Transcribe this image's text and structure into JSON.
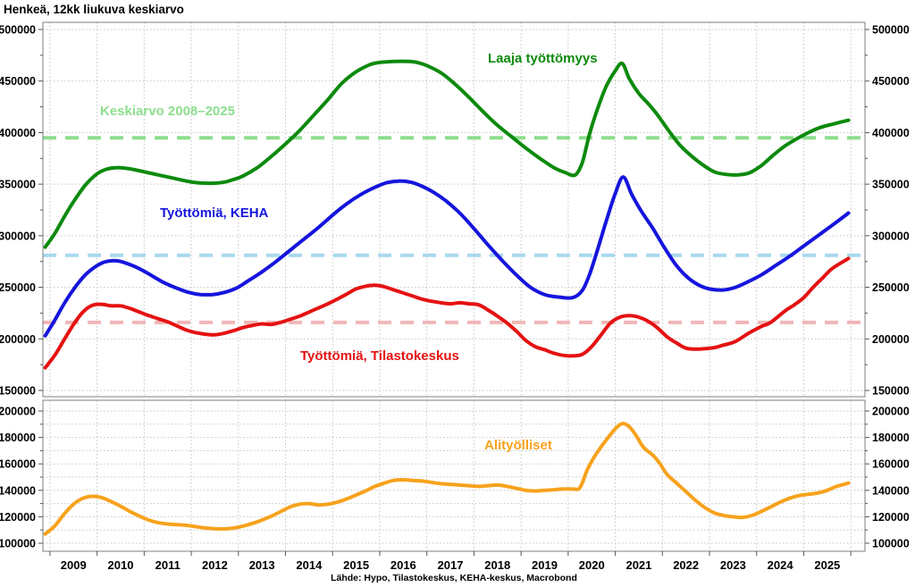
{
  "title": "Henkeä, 12kk liukuva keskiarvo",
  "source": "Lähde: Hypo, Tilastokeskus, KEHA-keskus, Macrobond",
  "colors": {
    "laaja": "#0d8a0d",
    "keha": "#1515dd",
    "tilastokeskus": "#e51212",
    "alityolliset": "#f7a21c",
    "avg_laaja": "#8dde8d",
    "avg_keha": "#a8d8ef",
    "avg_tilastokeskus": "#f0b6b6",
    "grid": "#c4c4c4",
    "border": "#7f7f7f",
    "text": "#000000"
  },
  "x_axis": {
    "domain": [
      2008.85,
      2026.3
    ],
    "year_labels": [
      "2009",
      "2010",
      "2011",
      "2012",
      "2013",
      "2014",
      "2015",
      "2016",
      "2017",
      "2018",
      "2019",
      "2020",
      "2021",
      "2022",
      "2023",
      "2024",
      "2025"
    ]
  },
  "chart_data": [
    {
      "type": "line",
      "panel": "main",
      "ylim": [
        150000,
        500000
      ],
      "ytick_step": 50000,
      "minor_tick_step": 25000,
      "grid_step": 50000,
      "legend_position": "inline-annotations",
      "series": [
        {
          "name": "Laaja työttömyys",
          "color": "#0d8a0d",
          "x": [
            2008.9,
            2009.1,
            2009.3,
            2009.5,
            2009.75,
            2010.0,
            2010.2,
            2010.4,
            2010.6,
            2010.8,
            2011.0,
            2011.3,
            2011.6,
            2011.9,
            2012.1,
            2012.3,
            2012.5,
            2012.7,
            2012.9,
            2013.1,
            2013.4,
            2013.7,
            2014.0,
            2014.3,
            2014.6,
            2014.9,
            2015.2,
            2015.5,
            2015.8,
            2016.0,
            2016.3,
            2016.6,
            2016.8,
            2017.0,
            2017.3,
            2017.6,
            2017.9,
            2018.2,
            2018.5,
            2018.8,
            2019.1,
            2019.4,
            2019.7,
            2019.95,
            2020.15,
            2020.3,
            2020.45,
            2020.6,
            2020.8,
            2021.0,
            2021.15,
            2021.3,
            2021.5,
            2021.7,
            2021.9,
            2022.1,
            2022.35,
            2022.6,
            2022.85,
            2023.1,
            2023.35,
            2023.6,
            2023.85,
            2024.1,
            2024.35,
            2024.6,
            2024.85,
            2025.1,
            2025.35,
            2025.6,
            2025.95
          ],
          "values": [
            289000,
            302000,
            318000,
            333000,
            349000,
            360000,
            364500,
            366000,
            365500,
            364000,
            362000,
            359000,
            356000,
            353000,
            351500,
            351000,
            351000,
            352000,
            354500,
            358000,
            366000,
            377000,
            389000,
            402000,
            417000,
            432000,
            448000,
            459000,
            466000,
            468000,
            469000,
            469000,
            468000,
            465000,
            458000,
            447000,
            434000,
            420000,
            407000,
            396000,
            385000,
            375000,
            366000,
            361000,
            359000,
            371000,
            398000,
            420000,
            444000,
            460000,
            467000,
            452000,
            438000,
            428000,
            417000,
            404000,
            389000,
            378000,
            369000,
            362000,
            359500,
            359000,
            361000,
            368000,
            378000,
            387000,
            394000,
            400000,
            405000,
            408000,
            412000
          ]
        },
        {
          "name": "Työttömiä, KEHA",
          "color": "#1515dd",
          "x": [
            2008.9,
            2009.1,
            2009.3,
            2009.5,
            2009.75,
            2010.0,
            2010.2,
            2010.45,
            2010.7,
            2010.9,
            2011.1,
            2011.4,
            2011.7,
            2011.95,
            2012.2,
            2012.45,
            2012.7,
            2012.95,
            2013.2,
            2013.5,
            2013.8,
            2014.1,
            2014.4,
            2014.7,
            2015.0,
            2015.3,
            2015.6,
            2015.9,
            2016.15,
            2016.4,
            2016.65,
            2016.9,
            2017.15,
            2017.4,
            2017.7,
            2018.0,
            2018.3,
            2018.6,
            2018.9,
            2019.2,
            2019.5,
            2019.8,
            2020.1,
            2020.3,
            2020.45,
            2020.6,
            2020.8,
            2021.0,
            2021.17,
            2021.35,
            2021.55,
            2021.8,
            2022.05,
            2022.3,
            2022.55,
            2022.8,
            2023.05,
            2023.3,
            2023.55,
            2023.8,
            2024.1,
            2024.4,
            2024.7,
            2025.0,
            2025.3,
            2025.6,
            2025.95
          ],
          "values": [
            203000,
            218000,
            234000,
            248000,
            262000,
            271000,
            275000,
            275500,
            272000,
            268000,
            263000,
            255000,
            249000,
            245000,
            243000,
            243000,
            245000,
            249000,
            256000,
            265000,
            275000,
            286000,
            297000,
            308000,
            320000,
            331000,
            340000,
            347000,
            351500,
            353000,
            352000,
            348000,
            342000,
            334000,
            322000,
            307000,
            291000,
            276000,
            262000,
            250000,
            243000,
            240500,
            240000,
            247000,
            262000,
            283000,
            313000,
            341000,
            357000,
            340000,
            324000,
            307000,
            288000,
            271000,
            259000,
            251500,
            248000,
            247500,
            250000,
            255000,
            262000,
            271000,
            280000,
            290000,
            300000,
            310000,
            322000
          ]
        },
        {
          "name": "Työttömiä, Tilastokeskus",
          "color": "#e51212",
          "x": [
            2008.9,
            2009.1,
            2009.3,
            2009.5,
            2009.7,
            2009.9,
            2010.1,
            2010.3,
            2010.5,
            2010.7,
            2010.9,
            2011.1,
            2011.3,
            2011.5,
            2011.7,
            2011.9,
            2012.1,
            2012.3,
            2012.5,
            2012.7,
            2012.9,
            2013.1,
            2013.3,
            2013.5,
            2013.7,
            2013.9,
            2014.1,
            2014.3,
            2014.5,
            2014.7,
            2014.9,
            2015.1,
            2015.3,
            2015.5,
            2015.7,
            2015.9,
            2016.1,
            2016.3,
            2016.5,
            2016.7,
            2016.9,
            2017.1,
            2017.3,
            2017.5,
            2017.7,
            2017.9,
            2018.1,
            2018.3,
            2018.5,
            2018.7,
            2018.9,
            2019.1,
            2019.3,
            2019.5,
            2019.7,
            2019.9,
            2020.1,
            2020.3,
            2020.5,
            2020.7,
            2020.9,
            2021.1,
            2021.3,
            2021.5,
            2021.7,
            2021.9,
            2022.1,
            2022.3,
            2022.5,
            2022.7,
            2022.9,
            2023.1,
            2023.3,
            2023.55,
            2023.85,
            2024.1,
            2024.3,
            2024.6,
            2024.8,
            2025.0,
            2025.2,
            2025.4,
            2025.6,
            2025.95
          ],
          "values": [
            172000,
            184000,
            199000,
            214000,
            226000,
            232500,
            233500,
            232000,
            232000,
            229500,
            226000,
            222500,
            219500,
            216500,
            212500,
            208500,
            206000,
            204500,
            204000,
            205500,
            208000,
            211000,
            213000,
            214500,
            214000,
            216000,
            219000,
            222000,
            226000,
            230000,
            234000,
            238500,
            243500,
            248500,
            251000,
            252000,
            250500,
            247500,
            244500,
            241500,
            238500,
            236500,
            235000,
            234000,
            235000,
            234000,
            233000,
            228000,
            222000,
            215500,
            207500,
            198500,
            192500,
            189500,
            186000,
            184000,
            183500,
            185000,
            192500,
            204000,
            215500,
            221000,
            222500,
            221000,
            217000,
            210500,
            202000,
            196000,
            191000,
            190000,
            190500,
            191500,
            194000,
            197500,
            206000,
            212000,
            216000,
            227000,
            233000,
            240000,
            250000,
            259000,
            268000,
            278000
          ]
        }
      ],
      "reference_lines": [
        {
          "label": "Keskiarvo 2008–2025",
          "value": 395000,
          "color": "#8dde8d"
        },
        {
          "label": "",
          "value": 281000,
          "color": "#a8d8ef"
        },
        {
          "label": "",
          "value": 216000,
          "color": "#f0b6b6"
        }
      ]
    },
    {
      "type": "line",
      "panel": "lower",
      "ylim": [
        100000,
        200000
      ],
      "ytick_step": 20000,
      "minor_tick_step": 10000,
      "grid_step": 10000,
      "series": [
        {
          "name": "Alityölliset",
          "color": "#f7a21c",
          "x": [
            2008.9,
            2009.1,
            2009.3,
            2009.5,
            2009.7,
            2009.9,
            2010.1,
            2010.3,
            2010.5,
            2010.7,
            2010.9,
            2011.1,
            2011.3,
            2011.5,
            2011.7,
            2011.9,
            2012.1,
            2012.3,
            2012.5,
            2012.7,
            2012.9,
            2013.1,
            2013.3,
            2013.5,
            2013.7,
            2013.9,
            2014.1,
            2014.3,
            2014.5,
            2014.7,
            2014.9,
            2015.1,
            2015.3,
            2015.5,
            2015.7,
            2015.9,
            2016.1,
            2016.3,
            2016.5,
            2016.7,
            2016.9,
            2017.1,
            2017.3,
            2017.5,
            2017.7,
            2017.9,
            2018.1,
            2018.3,
            2018.5,
            2018.7,
            2018.9,
            2019.1,
            2019.3,
            2019.5,
            2019.7,
            2019.9,
            2020.1,
            2020.25,
            2020.4,
            2020.55,
            2020.7,
            2020.85,
            2021.0,
            2021.15,
            2021.3,
            2021.45,
            2021.6,
            2021.8,
            2021.95,
            2022.1,
            2022.3,
            2022.5,
            2022.7,
            2022.9,
            2023.1,
            2023.3,
            2023.5,
            2023.7,
            2023.9,
            2024.1,
            2024.3,
            2024.5,
            2024.7,
            2024.9,
            2025.1,
            2025.3,
            2025.5,
            2025.7,
            2025.95
          ],
          "values": [
            107000,
            113000,
            122000,
            129500,
            134000,
            135500,
            134500,
            131500,
            128000,
            124000,
            120500,
            117500,
            115500,
            114500,
            114000,
            113500,
            112500,
            111500,
            111000,
            110800,
            111500,
            113000,
            115000,
            117500,
            120500,
            124000,
            127500,
            129500,
            130000,
            129000,
            129500,
            131000,
            133500,
            136500,
            139500,
            143000,
            145500,
            147500,
            148000,
            147500,
            147000,
            146000,
            145000,
            144500,
            144000,
            143500,
            143000,
            143500,
            144000,
            143000,
            141500,
            140000,
            139500,
            140000,
            140500,
            141000,
            141000,
            142000,
            155000,
            165000,
            173000,
            180000,
            186500,
            190500,
            188000,
            181000,
            172500,
            166500,
            160000,
            152000,
            145500,
            139000,
            132500,
            127000,
            123000,
            121000,
            120000,
            119500,
            121000,
            124000,
            127500,
            131000,
            134000,
            136000,
            137000,
            138000,
            140000,
            143000,
            145500
          ]
        }
      ],
      "reference_lines": []
    }
  ]
}
